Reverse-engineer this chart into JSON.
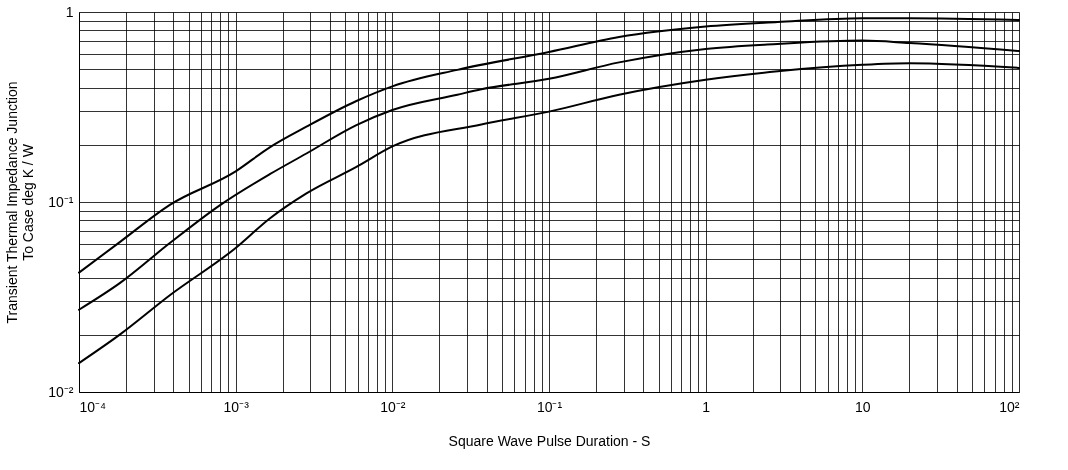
{
  "chart_data": {
    "type": "line",
    "xlabel": "Square Wave Pulse Duration - S",
    "ylabel": "Transient Thermal Impedance Junction\nTo Case deg K / W",
    "log": "xy",
    "grid": true,
    "marker": "none",
    "line_style": "solid",
    "legend": false,
    "xlim": [
      0.0001,
      100
    ],
    "ylim": [
      0.01,
      1
    ],
    "xticks": [
      {
        "value": 0.0001,
        "label": "10⁻⁴"
      },
      {
        "value": 0.001,
        "label": "10⁻³"
      },
      {
        "value": 0.01,
        "label": "10⁻²"
      },
      {
        "value": 0.1,
        "label": "10⁻¹"
      },
      1,
      10,
      {
        "value": 100,
        "label": "10²"
      }
    ],
    "yticks": [
      {
        "value": 0.01,
        "label": "10⁻²"
      },
      {
        "value": 0.1,
        "label": "10⁻¹"
      },
      1
    ],
    "series": [
      {
        "color": "#000000",
        "x": [
          0.0001,
          0.000183,
          0.00038,
          0.001,
          0.00165,
          0.00283,
          0.0059,
          0.01,
          0.026,
          0.1,
          0.28,
          1,
          2.88,
          10,
          20,
          100
        ],
        "values": [
          0.0425,
          0.0617,
          0.0966,
          0.145,
          0.194,
          0.249,
          0.34,
          0.406,
          0.496,
          0.616,
          0.738,
          0.838,
          0.885,
          0.927,
          0.927,
          0.907
        ]
      },
      {
        "color": "#000000",
        "x": [
          0.0001,
          0.000183,
          0.00038,
          0.0008,
          0.00165,
          0.00283,
          0.0059,
          0.01,
          0.026,
          0.037,
          0.1,
          0.28,
          1,
          2.88,
          10,
          20,
          100
        ],
        "values": [
          0.0271,
          0.0375,
          0.0608,
          0.0966,
          0.14,
          0.18,
          0.254,
          0.305,
          0.367,
          0.392,
          0.445,
          0.543,
          0.639,
          0.679,
          0.707,
          0.687,
          0.623
        ]
      },
      {
        "color": "#000000",
        "x": [
          0.0001,
          0.000183,
          0.00038,
          0.001,
          0.00165,
          0.00283,
          0.0059,
          0.01,
          0.037,
          0.1,
          0.28,
          1,
          2.88,
          10,
          20,
          100
        ],
        "values": [
          0.0142,
          0.0201,
          0.0323,
          0.0573,
          0.0819,
          0.111,
          0.153,
          0.196,
          0.256,
          0.299,
          0.367,
          0.44,
          0.487,
          0.527,
          0.537,
          0.508
        ]
      }
    ]
  }
}
